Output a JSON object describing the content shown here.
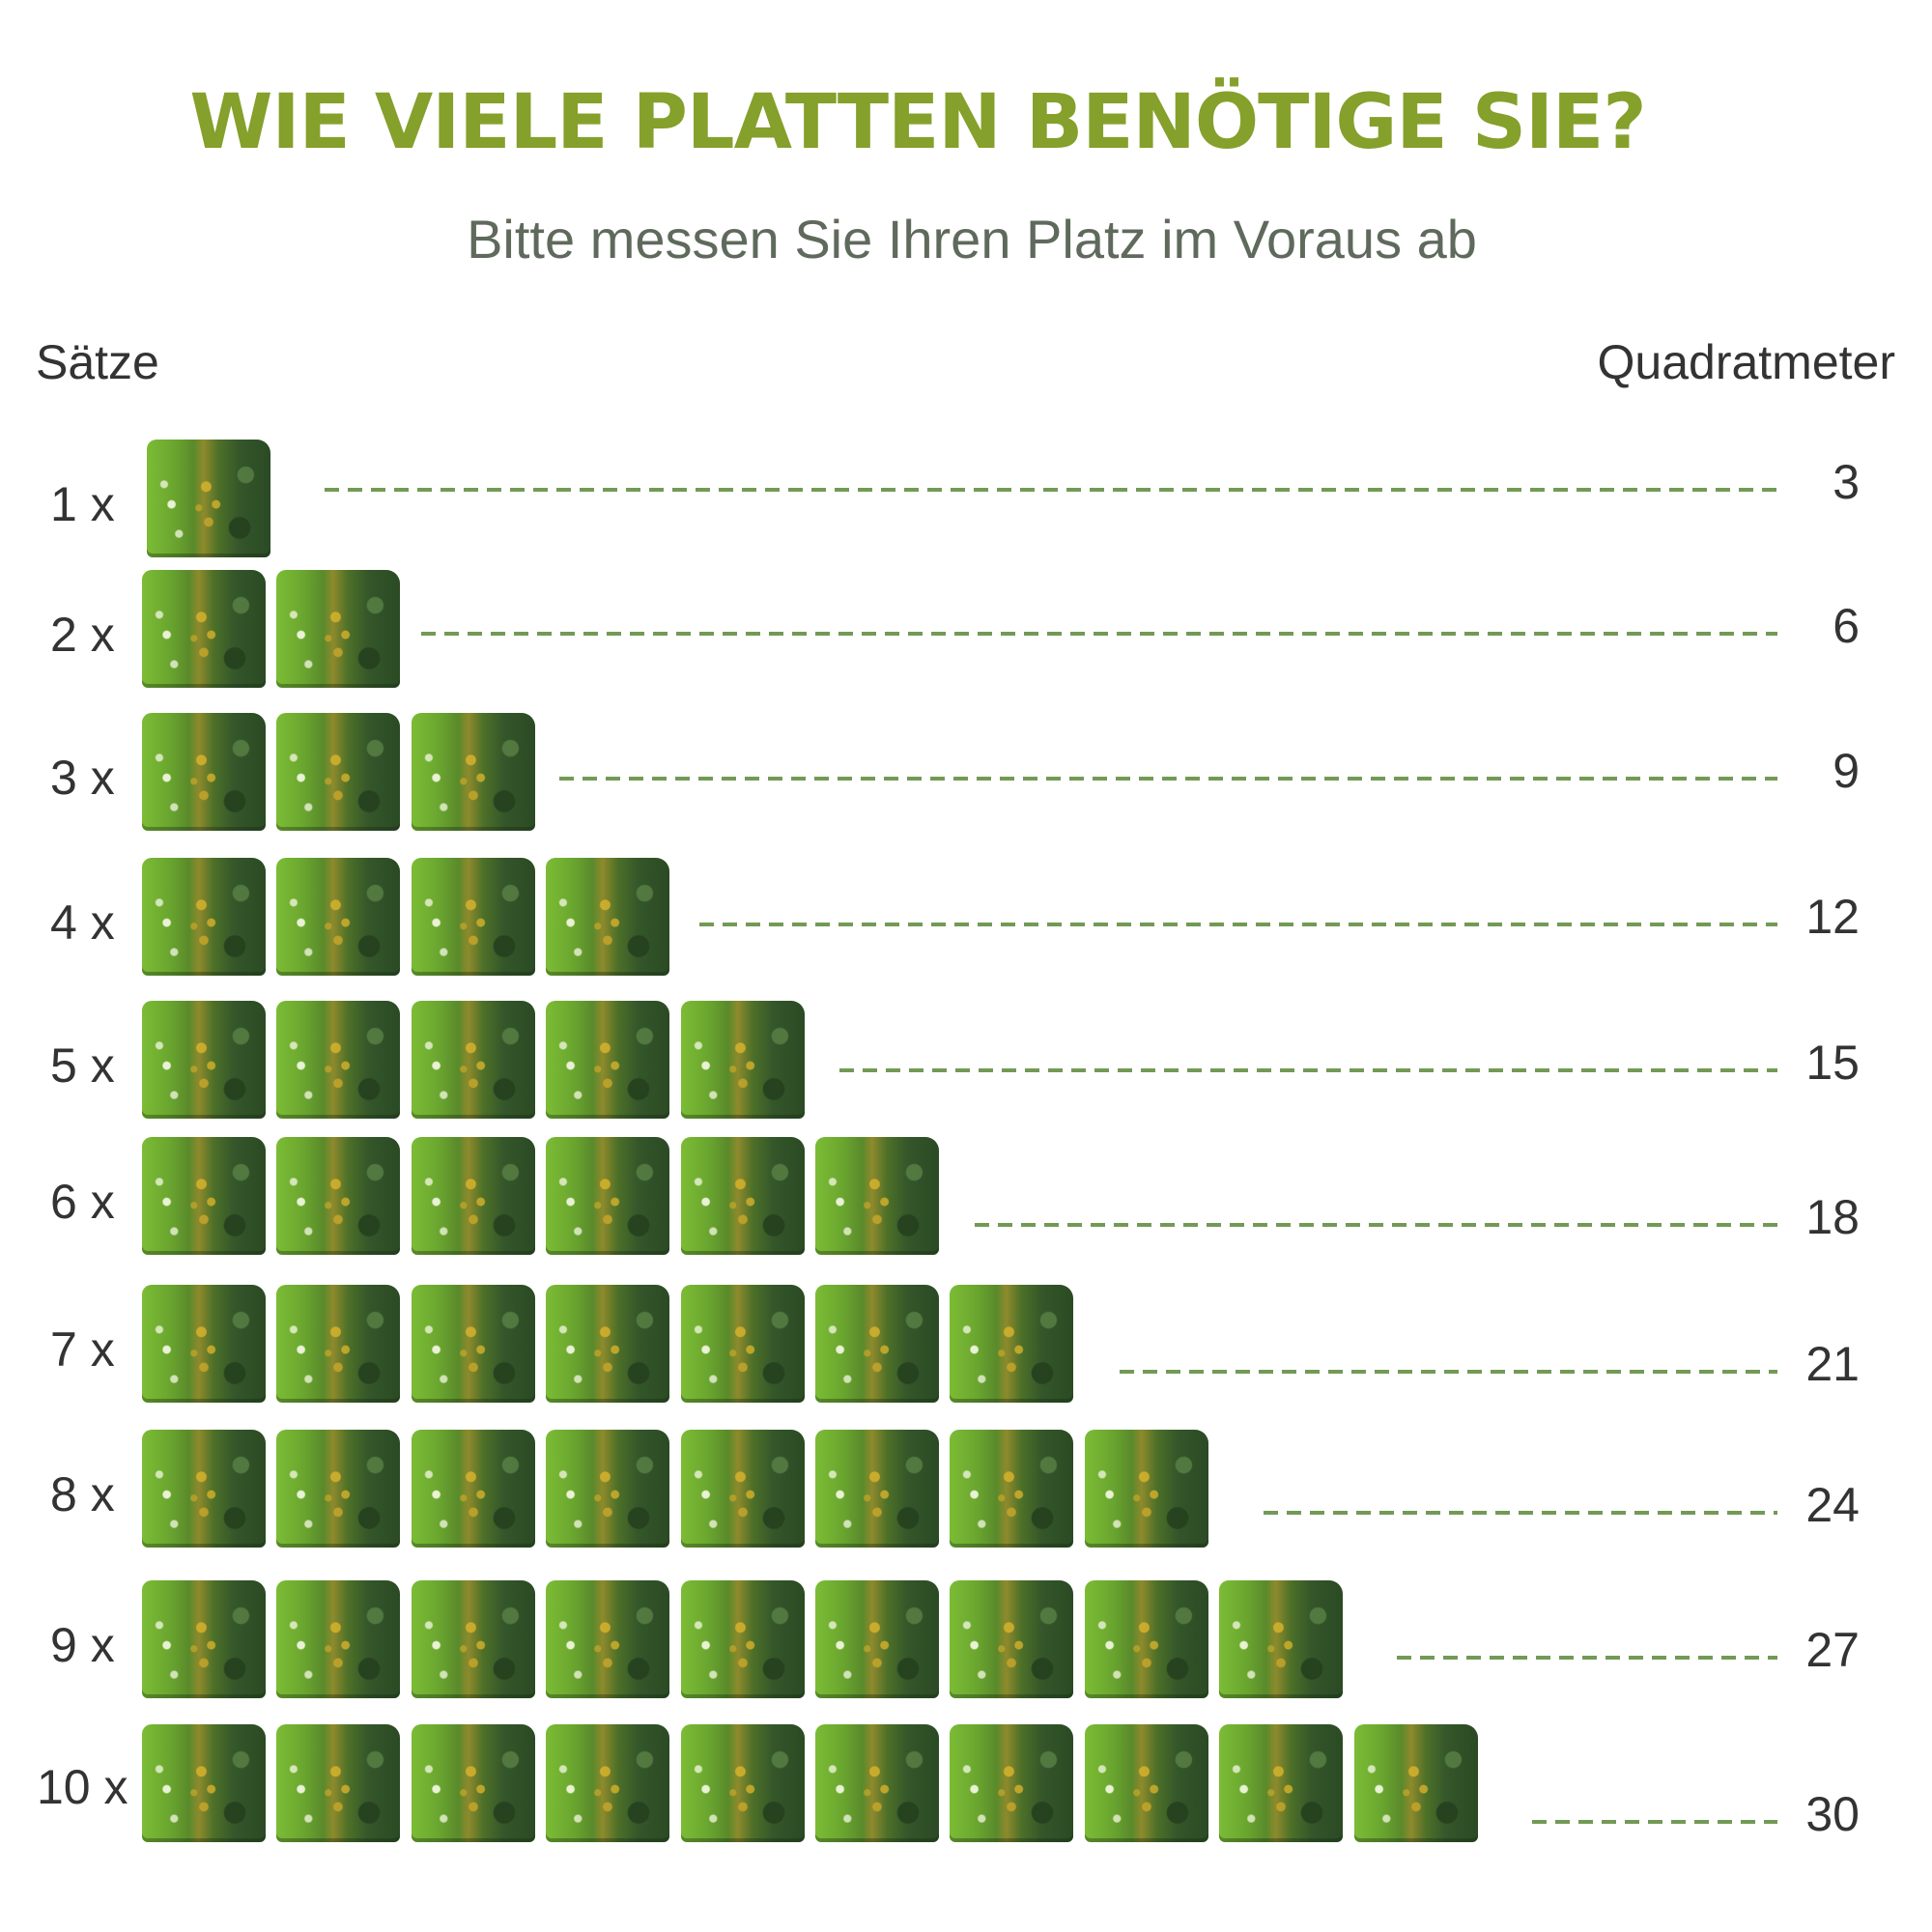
{
  "header": {
    "title": "WIE VIELE PLATTEN BENÖTIGE SIE?",
    "subtitle": "Bitte messen Sie Ihren Platz im Voraus ab"
  },
  "columns": {
    "left": "Sätze",
    "right": "Quadratmeter"
  },
  "colors": {
    "title": "#85a02b",
    "subtitle": "#5f6a5d",
    "text": "#333333",
    "dash": "#739a55"
  },
  "tile_icon": "green-wall-panel-icon",
  "rows": [
    {
      "label": "1 x",
      "count": 1,
      "value": "3"
    },
    {
      "label": "2 x",
      "count": 2,
      "value": "6"
    },
    {
      "label": "3 x",
      "count": 3,
      "value": "9"
    },
    {
      "label": "4 x",
      "count": 4,
      "value": "12"
    },
    {
      "label": "5 x",
      "count": 5,
      "value": "15"
    },
    {
      "label": "6 x",
      "count": 6,
      "value": "18"
    },
    {
      "label": "7 x",
      "count": 7,
      "value": "21"
    },
    {
      "label": "8 x",
      "count": 8,
      "value": "24"
    },
    {
      "label": "9 x",
      "count": 9,
      "value": "27"
    },
    {
      "label": "10 x",
      "count": 10,
      "value": "30"
    }
  ]
}
